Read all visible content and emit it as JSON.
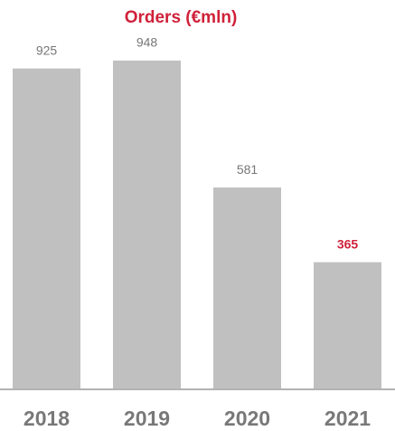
{
  "chart_data": {
    "type": "bar",
    "title": "Orders (€mln)",
    "categories": [
      "2018",
      "2019",
      "2020",
      "2021"
    ],
    "values": [
      925,
      948,
      581,
      365
    ],
    "color": "#c0c0c0",
    "label_colors": [
      "#777777",
      "#777777",
      "#777777",
      "#d0213a"
    ],
    "title_color": "#d0213a",
    "ylim": [
      0,
      1000
    ]
  }
}
